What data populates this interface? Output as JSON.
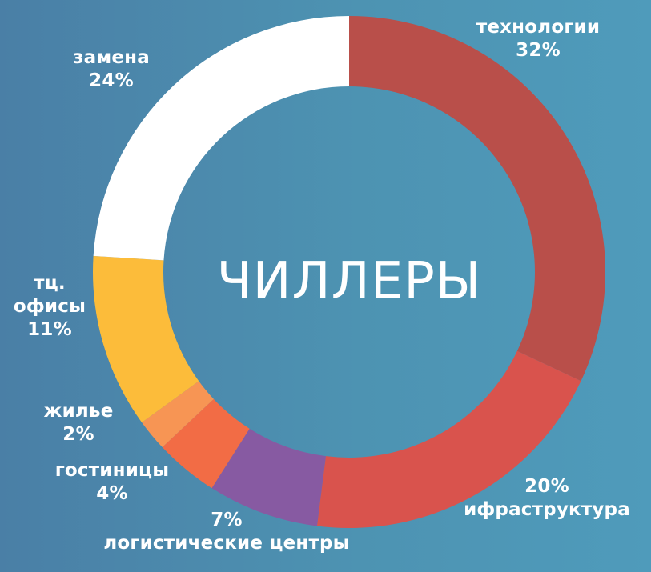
{
  "chart_data": {
    "type": "pie",
    "center_label": "ЧИЛЛЕРЫ",
    "slices": [
      {
        "category": "технологии",
        "value": 32,
        "value_label": "32%",
        "color": "#b94f4a"
      },
      {
        "category": "ифраструктура",
        "value": 20,
        "value_label": "20%",
        "color": "#d9534d"
      },
      {
        "category": "логистические центры",
        "value": 7,
        "value_label": "7%",
        "color": "#875aa2"
      },
      {
        "category": "гостиницы",
        "value": 4,
        "value_label": "4%",
        "color": "#f26c45"
      },
      {
        "category": "жилье",
        "value": 2,
        "value_label": "2%",
        "color": "#f79554"
      },
      {
        "category": "тц. офисы",
        "value": 11,
        "value_label": "11%",
        "color": "#fcbc3a"
      },
      {
        "category": "замена",
        "value": 24,
        "value_label": "24%",
        "color": "#ffffff"
      }
    ]
  }
}
